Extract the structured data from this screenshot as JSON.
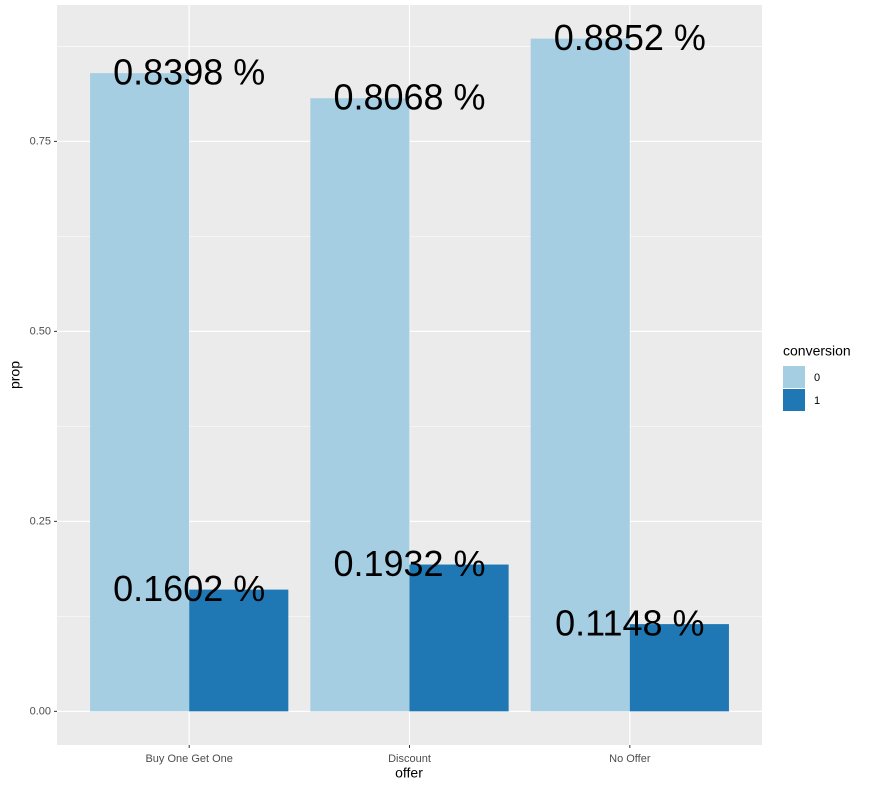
{
  "chart_data": {
    "type": "bar",
    "x_label": "offer",
    "y_label": "prop",
    "categories": [
      "Buy One Get One",
      "Discount",
      "No Offer"
    ],
    "series": [
      {
        "name": "0",
        "color": "#a6cee3",
        "values": [
          0.8398,
          0.8068,
          0.8852
        ],
        "value_labels": [
          "0.8398 %",
          "0.8068 %",
          "0.8852 %"
        ]
      },
      {
        "name": "1",
        "color": "#1f78b4",
        "values": [
          0.1602,
          0.1932,
          0.1148
        ],
        "value_labels": [
          "0.1602 %",
          "0.1932 %",
          "0.1148 %"
        ]
      }
    ],
    "ylim": [
      -0.04426,
      0.92946
    ],
    "yticks": [
      {
        "value": 0,
        "label": "0.00"
      },
      {
        "value": 0.25,
        "label": "0.25"
      },
      {
        "value": 0.5,
        "label": "0.50"
      },
      {
        "value": 0.75,
        "label": "0.75"
      }
    ],
    "grid": true,
    "minor_grid": true,
    "legend_title": "conversion",
    "legend_position": "right"
  }
}
